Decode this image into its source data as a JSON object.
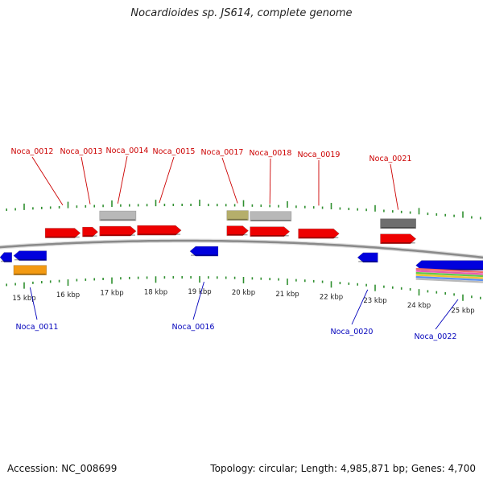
{
  "title": "Nocardioides sp. JS614, complete genome",
  "footer": {
    "accession": "Accession: NC_008699",
    "summary": "Topology: circular; Length: 4,985,871 bp; Genes: 4,700"
  },
  "colors": {
    "forward_gene": "#ee0000",
    "reverse_gene": "#0000dd",
    "rna_gray": "#b8b8b8",
    "dark_gray": "#6e6e6e",
    "olive": "#b5ae6b",
    "orange": "#f39a12",
    "forward_label": "#cc0000",
    "reverse_label": "#0000bb",
    "tick": "#2f8f2f",
    "backbone": "#8a8a8a"
  },
  "scale": {
    "unit": "kbp",
    "ticks": [
      {
        "pos": 15,
        "label": "15 kbp"
      },
      {
        "pos": 16,
        "label": "16 kbp"
      },
      {
        "pos": 17,
        "label": "17 kbp"
      },
      {
        "pos": 18,
        "label": "18 kbp"
      },
      {
        "pos": 19,
        "label": "19 kbp"
      },
      {
        "pos": 20,
        "label": "20 kbp"
      },
      {
        "pos": 21,
        "label": "21 kbp"
      },
      {
        "pos": 22,
        "label": "22 kbp"
      },
      {
        "pos": 23,
        "label": "23 kbp"
      },
      {
        "pos": 24,
        "label": "24 kbp"
      },
      {
        "pos": 25,
        "label": "25 kbp"
      }
    ]
  },
  "features": [
    {
      "strand": "+",
      "track": 1,
      "start": 15.48,
      "end": 16.28,
      "color": "forward_gene",
      "label": "Noca_0012"
    },
    {
      "strand": "+",
      "track": 1,
      "start": 16.33,
      "end": 16.68,
      "color": "forward_gene",
      "label": "Noca_0013"
    },
    {
      "strand": "+",
      "track": 1,
      "start": 16.72,
      "end": 17.55,
      "color": "forward_gene",
      "label": "Noca_0014"
    },
    {
      "strand": "+",
      "track": 2,
      "start": 16.72,
      "end": 17.55,
      "color": "rna_gray",
      "label": ""
    },
    {
      "strand": "+",
      "track": 1,
      "start": 17.58,
      "end": 18.58,
      "color": "forward_gene",
      "label": "Noca_0015"
    },
    {
      "strand": "+",
      "track": 1,
      "start": 19.62,
      "end": 20.11,
      "color": "forward_gene",
      "label": "Noca_0017"
    },
    {
      "strand": "+",
      "track": 2,
      "start": 19.62,
      "end": 20.11,
      "color": "olive",
      "label": ""
    },
    {
      "strand": "+",
      "track": 1,
      "start": 20.15,
      "end": 21.05,
      "color": "forward_gene",
      "label": "Noca_0018"
    },
    {
      "strand": "+",
      "track": 2,
      "start": 20.15,
      "end": 21.09,
      "color": "rna_gray",
      "label": ""
    },
    {
      "strand": "+",
      "track": 1,
      "start": 21.25,
      "end": 22.18,
      "color": "forward_gene",
      "label": "Noca_0019"
    },
    {
      "strand": "+",
      "track": 1,
      "start": 23.12,
      "end": 23.93,
      "color": "forward_gene",
      "label": "Noca_0021"
    },
    {
      "strand": "+",
      "track": 2,
      "start": 23.12,
      "end": 23.93,
      "color": "dark_gray",
      "label": ""
    },
    {
      "strand": "-",
      "track": 1,
      "start": 14.45,
      "end": 14.72,
      "color": "reverse_gene",
      "label": ""
    },
    {
      "strand": "-",
      "track": 1,
      "start": 14.76,
      "end": 15.51,
      "color": "reverse_gene",
      "label": "Noca_0011"
    },
    {
      "strand": "-",
      "track": 2,
      "start": 14.76,
      "end": 15.51,
      "color": "orange",
      "label": ""
    },
    {
      "strand": "-",
      "track": 1,
      "start": 18.78,
      "end": 19.42,
      "color": "reverse_gene",
      "label": "Noca_0016"
    },
    {
      "strand": "-",
      "track": 1,
      "start": 22.6,
      "end": 23.06,
      "color": "reverse_gene",
      "label": "Noca_0020"
    },
    {
      "strand": "-",
      "track": 1,
      "start": 23.93,
      "end": 25.85,
      "color": "reverse_gene",
      "label": "Noca_0022"
    }
  ]
}
